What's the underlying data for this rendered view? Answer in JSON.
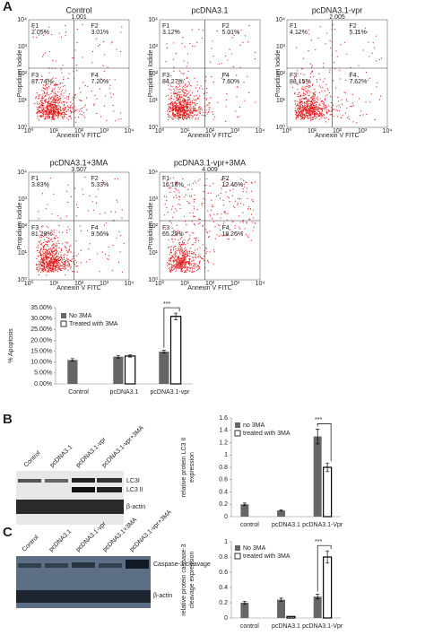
{
  "panel_labels": [
    "A",
    "B",
    "C"
  ],
  "flow_plots": {
    "x_label": "Annexin V FITC",
    "y_label": "Propidium Iodide",
    "axis_ticks": [
      "10⁰",
      "10¹",
      "10²",
      "10³",
      "10⁴"
    ],
    "plots": [
      {
        "title": "Control",
        "id": "1.001",
        "quadrants": [
          {
            "name": "F1",
            "value": "2.05%"
          },
          {
            "name": "F2",
            "value": "3.01%"
          },
          {
            "name": "F3",
            "value": "87.74%"
          },
          {
            "name": "F4",
            "value": "7.20%"
          }
        ]
      },
      {
        "title": "pcDNA3.1",
        "quadrants": [
          {
            "name": "F1",
            "value": "3.12%"
          },
          {
            "name": "F2",
            "value": "5.01%"
          },
          {
            "name": "F3",
            "value": "84.27%"
          },
          {
            "name": "F4",
            "value": "7.60%"
          }
        ]
      },
      {
        "title": "pcDNA3.1-vpr",
        "id": "2.005",
        "quadrants": [
          {
            "name": "F1",
            "value": "4.12%"
          },
          {
            "name": "F2",
            "value": "5.11%"
          },
          {
            "name": "F3",
            "value": "83.15%"
          },
          {
            "name": "F4",
            "value": "7.62%"
          }
        ]
      },
      {
        "title": "pcDNA3.1+3MA",
        "id": "3.507",
        "quadrants": [
          {
            "name": "F1",
            "value": "3.83%"
          },
          {
            "name": "F2",
            "value": "5.33%"
          },
          {
            "name": "F3",
            "value": "81.28%"
          },
          {
            "name": "F4",
            "value": "9.56%"
          }
        ]
      },
      {
        "title": "pcDNA3.1-vpr+3MA",
        "id": "4.009",
        "quadrants": [
          {
            "name": "F1",
            "value": "16.16%"
          },
          {
            "name": "F2",
            "value": "12.46%"
          },
          {
            "name": "F3",
            "value": "65.23%"
          },
          {
            "name": "F4",
            "value": "18.26%"
          }
        ]
      }
    ]
  },
  "blot_b": {
    "lanes": [
      "Control",
      "pcDNA3.1",
      "pcDNA3.1-vpr",
      "pcDNA3.1-vpr+3MA"
    ],
    "bands": [
      "LC3I",
      "LC3 II",
      "β-actin"
    ]
  },
  "blot_c": {
    "lanes": [
      "Control",
      "pcDNA3.1",
      "pcDNA3.1-vpr",
      "pcDNA3.1+3MA",
      "pcDNA3.1-vpr+3MA"
    ],
    "bands": [
      "Caspase-3 cleavage",
      "β-actin"
    ]
  },
  "chart_data": [
    {
      "type": "bar",
      "y_label": [
        "% Apoptosis"
      ],
      "categories": [
        "Control",
        "pcDNA3.1",
        "pcDNA3.1-vpr"
      ],
      "series": [
        {
          "name": "No 3MA",
          "color": "#666666",
          "values": [
            11,
            12.5,
            14.8
          ],
          "errors": [
            0.6,
            0.6,
            0.6
          ]
        },
        {
          "name": "Treated with 3MA",
          "color": "#ffffff",
          "values": [
            null,
            12.8,
            31
          ],
          "errors": [
            null,
            0.5,
            1.5
          ]
        }
      ],
      "ylim": [
        0,
        35
      ],
      "yticks": [
        {
          "value": 0,
          "label": "0.00%"
        },
        {
          "value": 5,
          "label": "5.00%"
        },
        {
          "value": 10,
          "label": "10.00%"
        },
        {
          "value": 15,
          "label": "15.00%"
        },
        {
          "value": 20,
          "label": "20.00%"
        },
        {
          "value": 25,
          "label": "25.00%"
        },
        {
          "value": 30,
          "label": "30.00%"
        },
        {
          "value": 35,
          "label": "35.00%"
        }
      ],
      "annotation": "***"
    },
    {
      "type": "bar",
      "y_label": [
        "relative protein LC3 II",
        "expression"
      ],
      "categories": [
        "control",
        "pcDNA3.1",
        "pcDNA3.1-Vpr"
      ],
      "series": [
        {
          "name": "no 3MA",
          "color": "#666666",
          "values": [
            0.2,
            0.1,
            1.3
          ],
          "errors": [
            0.02,
            0.01,
            0.12
          ]
        },
        {
          "name": "treated with 3MA",
          "color": "#ffffff",
          "values": [
            null,
            null,
            0.8
          ],
          "errors": [
            null,
            null,
            0.07
          ]
        }
      ],
      "ylim": [
        0,
        1.6
      ],
      "yticks": [
        0,
        0.2,
        0.4,
        0.6,
        0.8,
        1,
        1.2,
        1.4,
        1.6
      ],
      "annotation": "***"
    },
    {
      "type": "bar",
      "y_label": [
        "relative protein caspase-3",
        "cleavage expression"
      ],
      "categories": [
        "control",
        "pcDNA3.1",
        "pcDNA3.1-Vpr"
      ],
      "series": [
        {
          "name": "No 3MA",
          "color": "#666666",
          "values": [
            0.2,
            0.24,
            0.28
          ],
          "errors": [
            0.02,
            0.02,
            0.03
          ]
        },
        {
          "name": "treated with 3MA",
          "color": "#ffffff",
          "values": [
            null,
            0.02,
            0.8
          ],
          "errors": [
            null,
            null,
            0.08
          ]
        }
      ],
      "ylim": [
        0,
        1
      ],
      "yticks": [
        0,
        0.2,
        0.4,
        0.6,
        0.8,
        1
      ],
      "annotation": "***"
    }
  ]
}
